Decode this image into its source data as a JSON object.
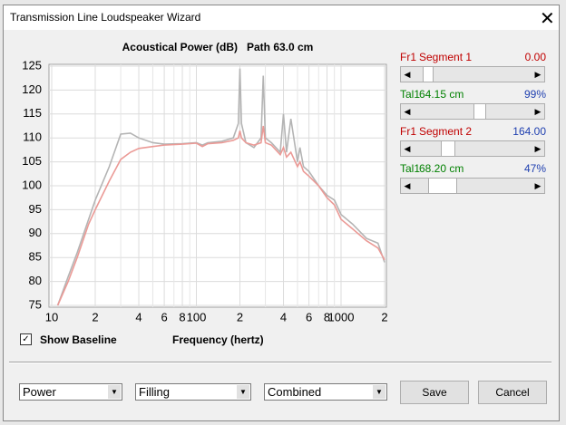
{
  "window": {
    "title": "Transmission Line Loudspeaker Wizard"
  },
  "chart_data": {
    "type": "line",
    "title": "Acoustical Power (dB)   Path 63.0 cm",
    "x_label": "Frequency (hertz)",
    "x": [
      11,
      13,
      15,
      18,
      20,
      25,
      30,
      35,
      40,
      50,
      60,
      80,
      100,
      110,
      120,
      150,
      180,
      195,
      200,
      205,
      220,
      250,
      280,
      290,
      300,
      330,
      380,
      400,
      420,
      450,
      500,
      520,
      550,
      600,
      700,
      800,
      900,
      1000,
      1200,
      1500,
      1800,
      2000
    ],
    "series": [
      {
        "color": "#b4b4b4",
        "values": [
          75,
          81,
          86,
          93,
          97,
          104,
          110.8,
          111,
          110,
          109,
          108.7,
          108.8,
          109,
          108.5,
          109,
          109.3,
          110,
          113,
          124.5,
          113,
          109,
          108,
          110,
          123,
          110,
          109,
          107,
          115,
          107,
          114,
          105,
          108,
          104,
          103,
          100,
          98,
          97,
          94,
          92,
          89,
          88,
          84
        ]
      },
      {
        "color": "#eb9a96",
        "values": [
          75,
          80,
          85,
          92,
          95,
          101,
          105.5,
          107,
          107.8,
          108.2,
          108.5,
          108.7,
          108.9,
          108.2,
          108.8,
          109,
          109.5,
          110,
          111.5,
          110,
          109,
          108.5,
          109,
          112.5,
          109,
          108.5,
          106.5,
          108,
          106,
          107,
          104,
          105,
          103,
          102,
          100,
          97.5,
          96,
          93,
          91,
          88.5,
          87,
          84.5
        ]
      }
    ],
    "xscale": "log",
    "xlim": [
      10,
      2000
    ],
    "xticks": [
      10,
      {
        "value": 20,
        "label": "2"
      },
      {
        "value": 40,
        "label": "4"
      },
      {
        "value": 60,
        "label": "6"
      },
      {
        "value": 80,
        "label": "8"
      },
      100,
      {
        "value": 200,
        "label": "2"
      },
      {
        "value": 400,
        "label": "4"
      },
      {
        "value": 600,
        "label": "6"
      },
      {
        "value": 800,
        "label": "8"
      },
      1000,
      {
        "value": 2000,
        "label": "2"
      }
    ],
    "minor_xticks": [
      30,
      50,
      70,
      90,
      300,
      500,
      700,
      900
    ],
    "ylim": [
      75,
      125
    ],
    "yticks": [
      75,
      80,
      85,
      90,
      95,
      100,
      105,
      110,
      115,
      120,
      125
    ],
    "grid": true
  },
  "segments": [
    {
      "tag": "Fr1",
      "label": "Segment 1",
      "value": "0.00"
    },
    {
      "tag": "Tal1",
      "label": "64.15 cm",
      "value": "99%"
    },
    {
      "tag": "Fr1",
      "label": "Segment 2",
      "value": "164.00"
    },
    {
      "tag": "Tal1",
      "label": "68.20 cm",
      "value": "47%"
    }
  ],
  "options": {
    "baseline": "Show Baseline",
    "dropdowns": [
      "Power",
      "Filling",
      "Combined"
    ],
    "buttons": [
      "Save",
      "Cancel"
    ]
  }
}
